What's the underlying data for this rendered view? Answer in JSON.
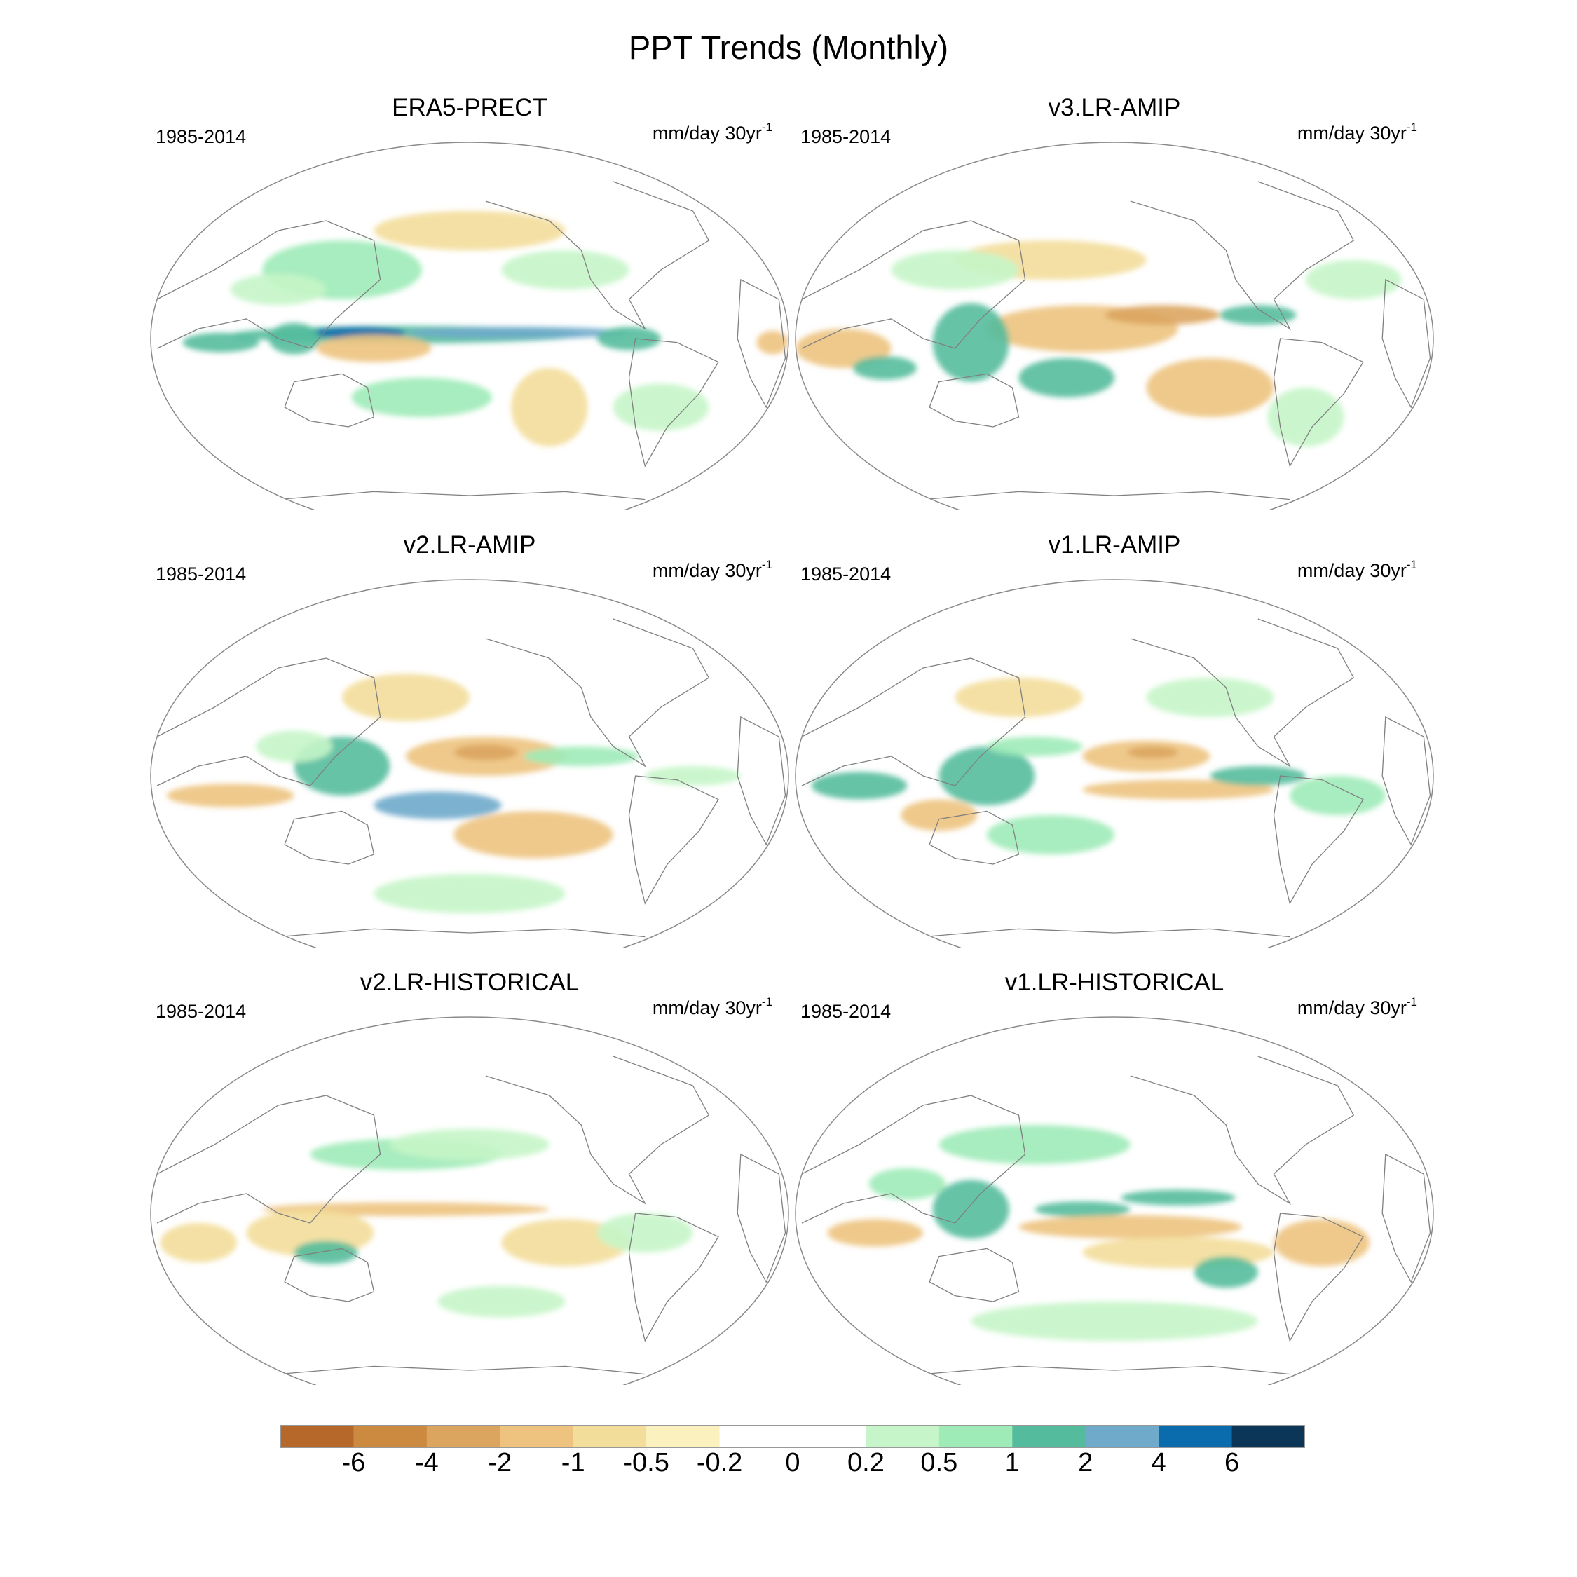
{
  "title": "PPT Trends (Monthly)",
  "panels": [
    {
      "id": "era5",
      "name": "ERA5-PRECT",
      "period": "1985-2014",
      "units": "mm/day 30yr",
      "units_exp": "-1"
    },
    {
      "id": "v3amip",
      "name": "v3.LR-AMIP",
      "period": "1985-2014",
      "units": "mm/day 30yr",
      "units_exp": "-1"
    },
    {
      "id": "v2amip",
      "name": "v2.LR-AMIP",
      "period": "1985-2014",
      "units": "mm/day 30yr",
      "units_exp": "-1"
    },
    {
      "id": "v1amip",
      "name": "v1.LR-AMIP",
      "period": "1985-2014",
      "units": "mm/day 30yr",
      "units_exp": "-1"
    },
    {
      "id": "v2hist",
      "name": "v2.LR-HISTORICAL",
      "period": "1985-2014",
      "units": "mm/day 30yr",
      "units_exp": "-1"
    },
    {
      "id": "v1hist",
      "name": "v1.LR-HISTORICAL",
      "period": "1985-2014",
      "units": "mm/day 30yr",
      "units_exp": "-1"
    }
  ],
  "colorbar": {
    "colors": [
      "#b5682a",
      "#cc8a40",
      "#dca55f",
      "#edc37f",
      "#f3dd9a",
      "#fbf1bf",
      "#ffffff",
      "#ffffff",
      "#c5f5c8",
      "#9eebb8",
      "#54bc9c",
      "#6faacb",
      "#0b6cad",
      "#0b3657"
    ],
    "labels": [
      "-6",
      "-4",
      "-2",
      "-1",
      "-0.5",
      "-0.2",
      "0",
      "0.2",
      "0.5",
      "1",
      "2",
      "4",
      "6"
    ]
  },
  "land_color": "#808080",
  "border_color": "#8a8a8a"
}
